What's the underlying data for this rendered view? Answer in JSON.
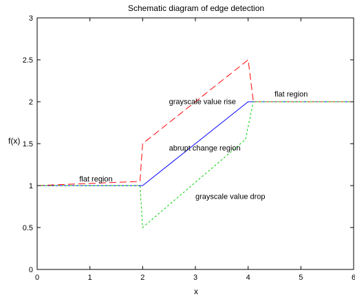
{
  "chart_data": {
    "type": "line",
    "title": "Schematic diagram of edge detection",
    "xlabel": "x",
    "ylabel": "f(x)",
    "xlim": [
      0,
      6
    ],
    "ylim": [
      0,
      3
    ],
    "grid": false,
    "x_ticks": [
      "0",
      "1",
      "2",
      "3",
      "4",
      "5",
      "6"
    ],
    "y_ticks": [
      "0",
      "0.5",
      "1",
      "1.5",
      "2",
      "2.5",
      "3"
    ],
    "series": [
      {
        "color": "#0000ff",
        "style": "solid",
        "x": [
          0,
          2,
          4,
          6
        ],
        "y": [
          1,
          1,
          2,
          2
        ]
      },
      {
        "color": "#ff0000",
        "style": "dashed",
        "x": [
          0,
          1.95,
          2,
          4,
          4.1,
          6
        ],
        "y": [
          1,
          1.05,
          1.5,
          2.5,
          2,
          2
        ]
      },
      {
        "color": "#00cc00",
        "style": "dotted",
        "x": [
          0,
          1.95,
          2,
          3.95,
          4.1,
          6
        ],
        "y": [
          1,
          1,
          0.5,
          1.55,
          2,
          2
        ]
      }
    ],
    "annotations": [
      {
        "text": "flat region",
        "x": 0.8,
        "y": 1.05
      },
      {
        "text": "flat region",
        "x": 4.5,
        "y": 2.06
      },
      {
        "text": "grayscale value rise",
        "x": 2.5,
        "y": 1.97
      },
      {
        "text": "abrupt change region",
        "x": 2.5,
        "y": 1.42
      },
      {
        "text": "grayscale value drop",
        "x": 3.0,
        "y": 0.84
      }
    ]
  }
}
